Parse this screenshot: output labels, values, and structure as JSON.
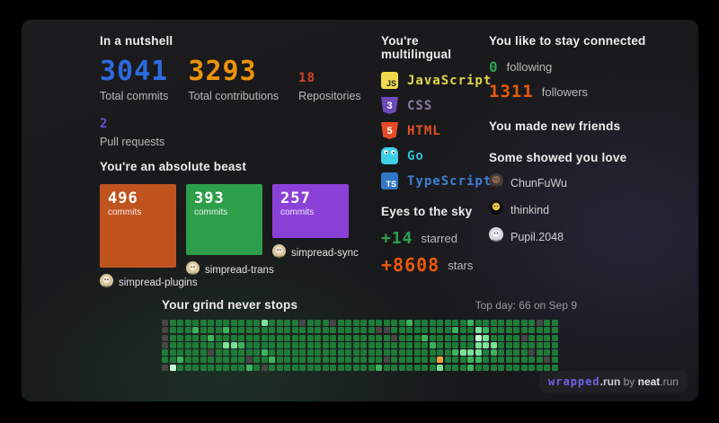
{
  "nutshell": {
    "heading": "In a nutshell",
    "stats": [
      {
        "value": "3041",
        "label": "Total commits",
        "color": "#2e6ae0"
      },
      {
        "value": "3293",
        "label": "Total contributions",
        "color": "#ec930c"
      },
      {
        "value": "18",
        "label": "Repositories",
        "color": "#d6452a"
      },
      {
        "value": "2",
        "label": "Pull requests",
        "color": "#6a4cd8"
      }
    ]
  },
  "beast": {
    "heading": "You're an absolute beast",
    "unit": "commits",
    "repos": [
      {
        "commits": "496",
        "name": "simpread-plugins",
        "color": "#c0541f",
        "height": 93
      },
      {
        "commits": "393",
        "name": "simpread-trans",
        "color": "#2d9e4a",
        "height": 79
      },
      {
        "commits": "257",
        "name": "simpread-sync",
        "color": "#8b41d8",
        "height": 60
      }
    ],
    "avatar": {
      "bg": "#d8c49a",
      "face": "#f3e8d2"
    }
  },
  "multilingual": {
    "heading": "You're multilingual",
    "languages": [
      {
        "name": "JavaScript",
        "color": "#e3d54b",
        "icon": "js",
        "icon_bg": "#f0db4f",
        "icon_text": "JS",
        "icon_fg": "#24231a"
      },
      {
        "name": "CSS",
        "color": "#8a7aa8",
        "icon": "css",
        "icon_bg": "#6c4bb8",
        "icon_text": "3",
        "icon_fg": "#ffffff"
      },
      {
        "name": "HTML",
        "color": "#e34f26",
        "icon": "html",
        "icon_bg": "#e44d26",
        "icon_text": "5",
        "icon_fg": "#ffffff"
      },
      {
        "name": "Go",
        "color": "#2fc0d8",
        "icon": "go",
        "icon_bg": "#3fd0e8",
        "icon_text": "",
        "icon_fg": "#123a42"
      },
      {
        "name": "TypeScript",
        "color": "#3d7fd6",
        "icon": "ts",
        "icon_bg": "#3178c6",
        "icon_text": "TS",
        "icon_fg": "#ffffff"
      }
    ]
  },
  "connected": {
    "heading": "You like to stay connected",
    "stats": [
      {
        "value": "0",
        "label": "following",
        "color": "#2ea04f"
      },
      {
        "value": "1311",
        "label": "followers",
        "color": "#e8590c"
      }
    ],
    "friends_heading": "You made new friends",
    "love_heading": "Some showed you love",
    "users": [
      {
        "name": "ChunFuWu",
        "avatar_bg": "#463b39",
        "avatar_face": "#8a6753"
      },
      {
        "name": "thinkind",
        "avatar_bg": "#101010",
        "avatar_face": "#f5c542"
      },
      {
        "name": "Pupil.2048",
        "avatar_bg": "#d9d4de",
        "avatar_face": "#f2f0f5"
      }
    ]
  },
  "eyes": {
    "heading": "Eyes to the sky",
    "stats": [
      {
        "value": "+14",
        "label": "starred",
        "color": "#2ea04f"
      },
      {
        "value": "+8608",
        "label": "stars",
        "color": "#e8590c"
      }
    ]
  },
  "grind": {
    "heading": "Your grind never stops",
    "top_day": "Top day: 66 on Sep 9",
    "palette": {
      "x": "#474747",
      "a": "#15532a",
      "b": "#1f7c38",
      "c": "#3cb45c",
      "d": "#7be297",
      "e": "#c9f8d3",
      "o": "#efa33e"
    },
    "grid": [
      "xbbbbbbbbbbbbdbbbbxbbbxbbbbbbbbbcbbbbbbbcbbbbbbbbxbb",
      "xbbbcbbbcbbbbbbbbbbbbbbbbbbbxxbbbbbbbbcbbdcbbbbbbbbb",
      "xbbbbbcbbbbbbbbbbbbbbbbbbbbbbbxbbbcbbbbbbedbbbbxbbbb",
      "xbbbbbbbddcbbbbbbbbbbbbbbbbbbbbbbbbcbbbbbdddbbbbbbbb",
      "bbbbbbxbbbbbbcbbbbbbbbbbbbbbbbbbbbbbbbcdddbcbbbbxbbb",
      "bbcbbbbbbbbxbbcbbbbbbbbbbbbbbxbbbbbbobbbccbbbbbbbbxb",
      "xebbbbbbbbbcbxbbbbbbbbbbbbbbcbbbbbbbdbbbcbbbbbbbbbbb"
    ]
  },
  "watermark": {
    "brand": "wrapped",
    "brand_suffix": ".run",
    "by": " by ",
    "name": "neat",
    "name_suffix": ".run",
    "brand_color": "#6f63e8"
  }
}
